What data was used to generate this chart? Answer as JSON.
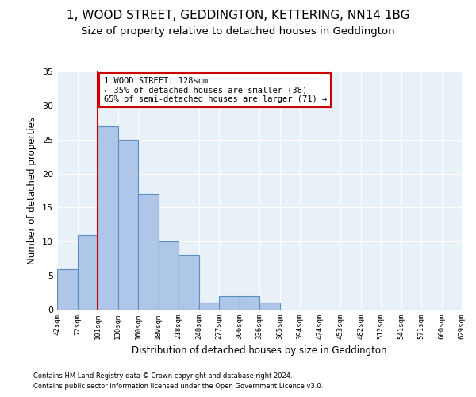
{
  "title": "1, WOOD STREET, GEDDINGTON, KETTERING, NN14 1BG",
  "subtitle": "Size of property relative to detached houses in Geddington",
  "xlabel": "Distribution of detached houses by size in Geddington",
  "ylabel": "Number of detached properties",
  "bar_values": [
    6,
    11,
    27,
    25,
    17,
    10,
    8,
    1,
    2,
    2,
    1,
    0,
    0,
    0,
    0,
    0,
    0,
    0,
    0,
    0
  ],
  "bin_labels": [
    "42sqm",
    "72sqm",
    "101sqm",
    "130sqm",
    "160sqm",
    "189sqm",
    "218sqm",
    "248sqm",
    "277sqm",
    "306sqm",
    "336sqm",
    "365sqm",
    "394sqm",
    "424sqm",
    "453sqm",
    "482sqm",
    "512sqm",
    "541sqm",
    "571sqm",
    "600sqm",
    "629sqm"
  ],
  "bar_color": "#aec6e8",
  "bar_edge_color": "#5a8fc2",
  "bg_color": "#e8f0f8",
  "grid_color": "#ffffff",
  "vline_x": 2,
  "vline_color": "#cc0000",
  "annotation_text": "1 WOOD STREET: 128sqm\n← 35% of detached houses are smaller (38)\n65% of semi-detached houses are larger (71) →",
  "annotation_box_color": "#cc0000",
  "footnote1": "Contains HM Land Registry data © Crown copyright and database right 2024.",
  "footnote2": "Contains public sector information licensed under the Open Government Licence v3.0.",
  "ylim": [
    0,
    35
  ],
  "title_fontsize": 11,
  "subtitle_fontsize": 9.5
}
